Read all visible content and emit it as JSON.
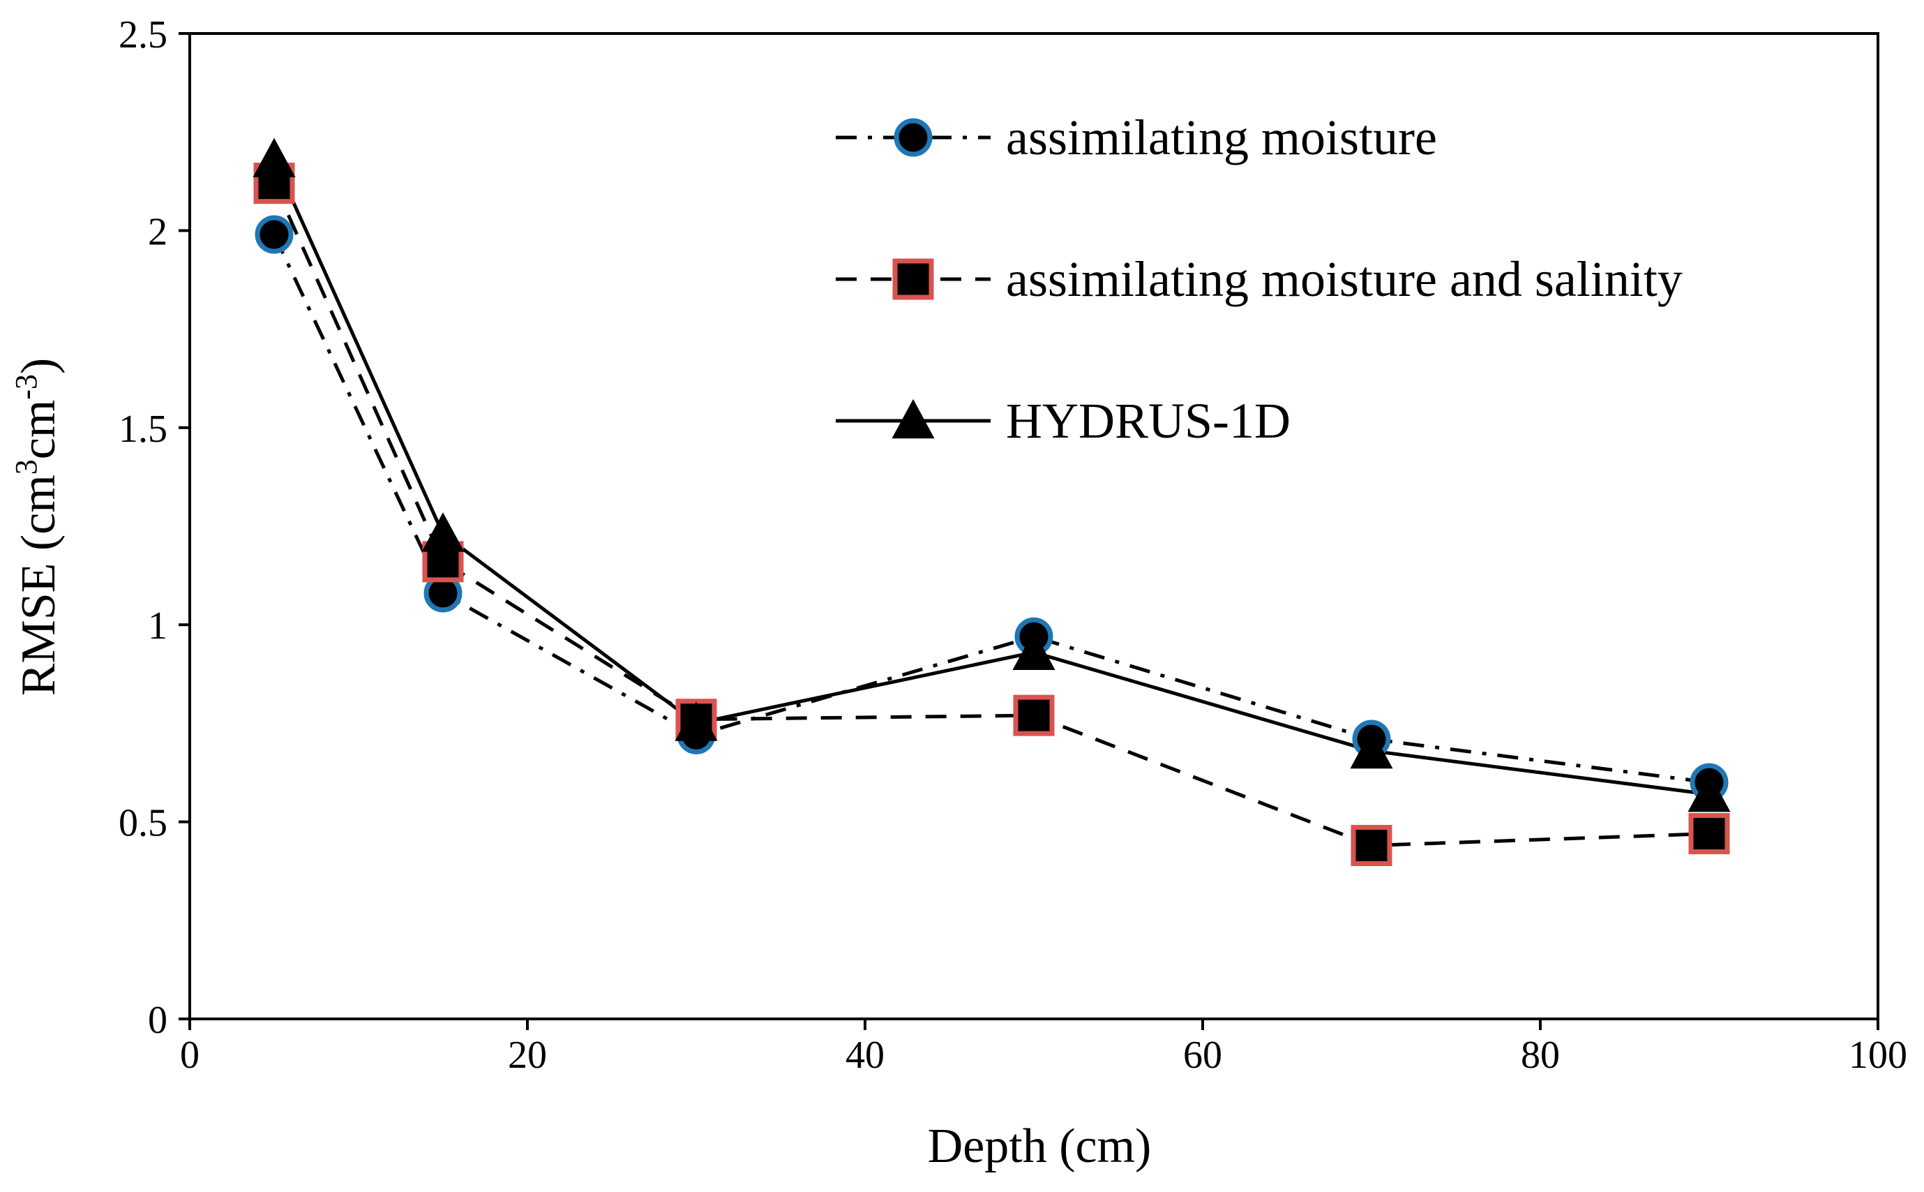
{
  "chart_data": {
    "type": "line",
    "title": "",
    "xlabel": "Depth (cm)",
    "ylabel": {
      "prefix": "RMSE (cm",
      "sup1": "3",
      "middle": "cm",
      "sup2": "-3",
      "suffix": ")"
    },
    "xlim": [
      0,
      100
    ],
    "ylim": [
      0,
      2.5
    ],
    "x_ticks": [
      0,
      20,
      40,
      60,
      80,
      100
    ],
    "y_ticks": [
      0,
      0.5,
      1,
      1.5,
      2,
      2.5
    ],
    "x_tick_labels": [
      "0",
      "20",
      "40",
      "60",
      "80",
      "100"
    ],
    "y_tick_labels": [
      "0",
      "0.5",
      "1",
      "1.5",
      "2",
      "2.5"
    ],
    "grid": false,
    "legend_position": "top-right, inside plot",
    "x": [
      5,
      15,
      30,
      50,
      70,
      90
    ],
    "series": [
      {
        "name": "assimilating moisture",
        "values": [
          1.99,
          1.08,
          0.72,
          0.97,
          0.71,
          0.6
        ],
        "marker": "circle",
        "line_style": "dash-dot",
        "marker_fill": "#000000",
        "marker_edge": "#1f77b4"
      },
      {
        "name": "assimilating moisture and salinity",
        "values": [
          2.12,
          1.16,
          0.76,
          0.77,
          0.44,
          0.47
        ],
        "marker": "square",
        "line_style": "dashed",
        "marker_fill": "#000000",
        "marker_edge": "#d9534f"
      },
      {
        "name": "HYDRUS-1D",
        "values": [
          2.18,
          1.23,
          0.75,
          0.93,
          0.68,
          0.57
        ],
        "marker": "triangle",
        "line_style": "solid",
        "marker_fill": "#000000",
        "marker_edge": "#000000"
      }
    ]
  }
}
